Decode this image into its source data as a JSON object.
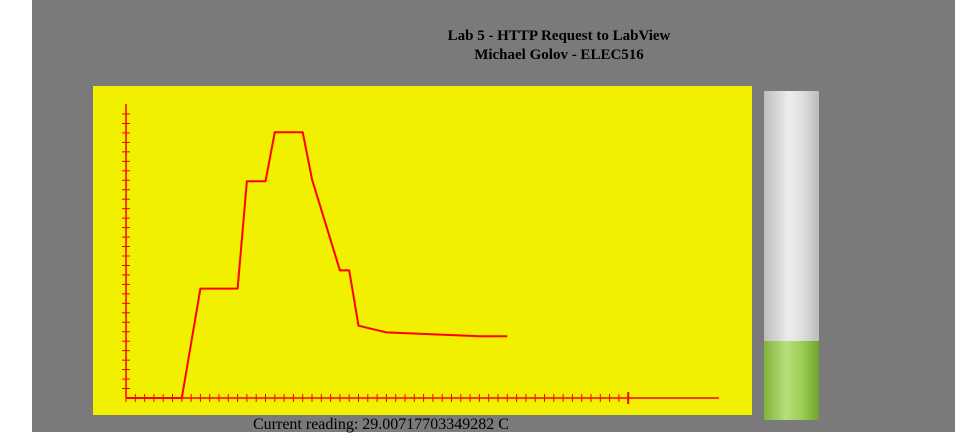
{
  "header": {
    "title_line1": "Lab 5 - HTTP Request to LabView",
    "title_line2": "Michael Golov - ELEC516"
  },
  "chart_data": {
    "type": "line",
    "title": "",
    "xlabel": "",
    "ylabel": "",
    "x": [
      0,
      6,
      8,
      12,
      13,
      15,
      16,
      19,
      20,
      23,
      24,
      25,
      28,
      38
    ],
    "series": [
      {
        "values": [
          0,
          0,
          37.2,
          37.2,
          73.7,
          73.7,
          90.4,
          90.4,
          74.4,
          43.4,
          43.4,
          24.6,
          22.3,
          21.0
        ]
      }
    ],
    "series_color": "#ff0000",
    "line_end_x": 41,
    "xlim": [
      0,
      55
    ],
    "ylim": [
      0,
      100
    ],
    "x_tick_count": 55,
    "y_tick_count": 30,
    "axis_color": "#ff0000",
    "background": "#f0f000",
    "grid": false,
    "legend": "none"
  },
  "thermometer": {
    "level_percent": 24
  },
  "status": {
    "current_reading": "Current reading: 29.00717703349282 C"
  }
}
